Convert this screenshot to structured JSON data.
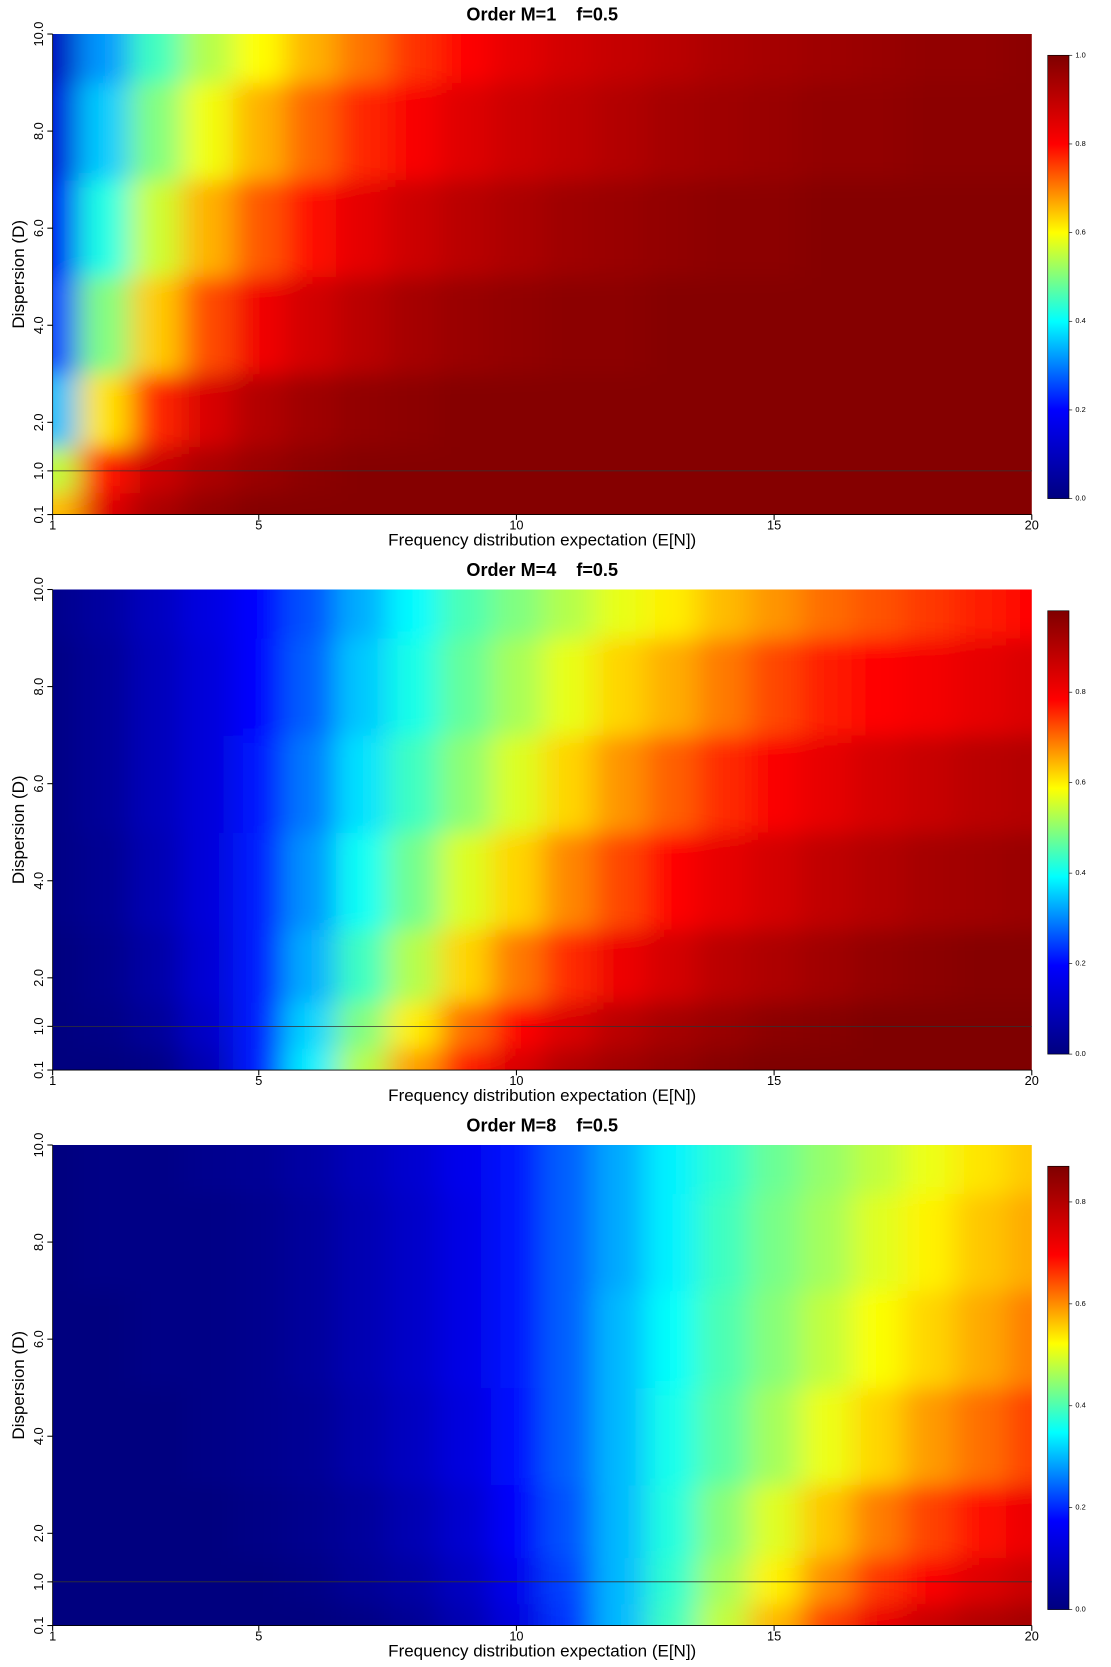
{
  "chart_data": [
    {
      "type": "heatmap",
      "title": "Order M=1    f=0.5",
      "xlabel": "Frequency distribution expectation (E[N])",
      "ylabel": "Dispersion (D)",
      "x": [
        1,
        2,
        3,
        4,
        5,
        6,
        7,
        8,
        9,
        10,
        11,
        12,
        13,
        14,
        15,
        16,
        17,
        18,
        19,
        20
      ],
      "y": [
        0.1,
        1,
        2,
        4,
        6,
        8,
        10
      ],
      "z": [
        [
          0.65,
          0.85,
          0.93,
          0.97,
          0.99,
          0.99,
          0.99,
          0.99,
          0.99,
          0.99,
          0.99,
          0.99,
          0.99,
          0.99,
          0.99,
          0.99,
          0.99,
          0.99,
          0.99,
          0.99
        ],
        [
          0.55,
          0.78,
          0.88,
          0.93,
          0.96,
          0.98,
          0.99,
          0.99,
          0.99,
          0.99,
          0.99,
          0.99,
          0.99,
          0.99,
          0.99,
          0.99,
          0.99,
          0.99,
          0.99,
          0.99
        ],
        [
          0.35,
          0.62,
          0.77,
          0.86,
          0.92,
          0.95,
          0.97,
          0.98,
          0.99,
          0.99,
          0.99,
          0.99,
          0.99,
          0.99,
          0.99,
          0.99,
          0.99,
          0.99,
          0.99,
          0.99
        ],
        [
          0.25,
          0.5,
          0.64,
          0.74,
          0.82,
          0.87,
          0.91,
          0.94,
          0.96,
          0.97,
          0.98,
          0.98,
          0.99,
          0.99,
          0.99,
          0.99,
          0.99,
          0.99,
          0.99,
          0.99
        ],
        [
          0.18,
          0.42,
          0.56,
          0.66,
          0.73,
          0.79,
          0.84,
          0.88,
          0.91,
          0.93,
          0.95,
          0.96,
          0.97,
          0.98,
          0.98,
          0.99,
          0.99,
          0.99,
          0.99,
          0.99
        ],
        [
          0.14,
          0.36,
          0.5,
          0.59,
          0.66,
          0.72,
          0.77,
          0.81,
          0.85,
          0.88,
          0.9,
          0.92,
          0.94,
          0.95,
          0.96,
          0.97,
          0.97,
          0.98,
          0.98,
          0.98
        ],
        [
          0.1,
          0.32,
          0.45,
          0.54,
          0.6,
          0.66,
          0.71,
          0.76,
          0.8,
          0.84,
          0.87,
          0.89,
          0.91,
          0.93,
          0.94,
          0.95,
          0.96,
          0.97,
          0.97,
          0.98
        ]
      ],
      "xlim": [
        1,
        20
      ],
      "ylim": [
        0.1,
        10
      ],
      "xticks": [
        1,
        5,
        10,
        15,
        20
      ],
      "yticks": [
        0.1,
        {
          "value": 1,
          "label": "1.0"
        },
        {
          "value": 2,
          "label": "2.0"
        },
        {
          "value": 4,
          "label": "4.0"
        },
        {
          "value": 6,
          "label": "6.0"
        },
        {
          "value": 8,
          "label": "8.0"
        },
        {
          "value": 10,
          "label": "10.0"
        }
      ],
      "zlim": [
        0,
        1
      ],
      "colorbar_ticks": [
        {
          "value": 0,
          "label": "0.0"
        },
        0.2,
        0.4,
        0.6,
        0.8,
        {
          "value": 1,
          "label": "1.0"
        }
      ],
      "colorscale": [
        "#00007f",
        "#0000ff",
        "#00ffff",
        "#ffff00",
        "#ff0000",
        "#7f0000"
      ],
      "hline": 1
    },
    {
      "type": "heatmap",
      "title": "Order M=4    f=0.5",
      "xlabel": "Frequency distribution expectation (E[N])",
      "ylabel": "Dispersion (D)",
      "x": [
        1,
        2,
        3,
        4,
        5,
        6,
        7,
        8,
        9,
        10,
        11,
        12,
        13,
        14,
        15,
        16,
        17,
        18,
        19,
        20
      ],
      "y": [
        0.1,
        1,
        2,
        4,
        6,
        8,
        10
      ],
      "z": [
        [
          0,
          0,
          0.01,
          0.08,
          0.22,
          0.38,
          0.53,
          0.66,
          0.76,
          0.84,
          0.9,
          0.93,
          0.95,
          0.97,
          0.98,
          0.98,
          0.98,
          0.98,
          0.98,
          0.98
        ],
        [
          0,
          0.01,
          0.04,
          0.11,
          0.22,
          0.36,
          0.49,
          0.6,
          0.7,
          0.78,
          0.84,
          0.89,
          0.92,
          0.94,
          0.96,
          0.97,
          0.98,
          0.98,
          0.98,
          0.98
        ],
        [
          0,
          0.02,
          0.06,
          0.13,
          0.22,
          0.33,
          0.44,
          0.53,
          0.62,
          0.69,
          0.75,
          0.81,
          0.85,
          0.89,
          0.91,
          0.93,
          0.95,
          0.96,
          0.97,
          0.97
        ],
        [
          0.01,
          0.03,
          0.08,
          0.14,
          0.22,
          0.31,
          0.4,
          0.48,
          0.56,
          0.62,
          0.68,
          0.73,
          0.78,
          0.82,
          0.85,
          0.88,
          0.9,
          0.92,
          0.93,
          0.94
        ],
        [
          0.01,
          0.04,
          0.09,
          0.14,
          0.21,
          0.29,
          0.37,
          0.44,
          0.5,
          0.56,
          0.62,
          0.67,
          0.71,
          0.75,
          0.79,
          0.82,
          0.85,
          0.87,
          0.89,
          0.9
        ],
        [
          0.01,
          0.04,
          0.09,
          0.14,
          0.2,
          0.27,
          0.35,
          0.41,
          0.47,
          0.52,
          0.57,
          0.62,
          0.65,
          0.69,
          0.73,
          0.76,
          0.78,
          0.8,
          0.82,
          0.84
        ],
        [
          0.02,
          0.05,
          0.1,
          0.15,
          0.2,
          0.26,
          0.33,
          0.39,
          0.45,
          0.49,
          0.53,
          0.57,
          0.6,
          0.64,
          0.67,
          0.7,
          0.72,
          0.74,
          0.76,
          0.78
        ]
      ],
      "xlim": [
        1,
        20
      ],
      "ylim": [
        0.1,
        10
      ],
      "xticks": [
        1,
        5,
        10,
        15,
        20
      ],
      "yticks": [
        0.1,
        {
          "value": 1,
          "label": "1.0"
        },
        {
          "value": 2,
          "label": "2.0"
        },
        {
          "value": 4,
          "label": "4.0"
        },
        {
          "value": 6,
          "label": "6.0"
        },
        {
          "value": 8,
          "label": "8.0"
        },
        {
          "value": 10,
          "label": "10.0"
        }
      ],
      "zlim": [
        0,
        0.98
      ],
      "colorbar_ticks": [
        {
          "value": 0,
          "label": "0.0"
        },
        0.2,
        0.4,
        0.6,
        0.8
      ],
      "colorscale": [
        "#00007f",
        "#0000ff",
        "#00ffff",
        "#ffff00",
        "#ff0000",
        "#7f0000"
      ],
      "hline": 1
    },
    {
      "type": "heatmap",
      "title": "Order M=8    f=0.5",
      "xlabel": "Frequency distribution expectation (E[N])",
      "ylabel": "Dispersion (D)",
      "x": [
        1,
        2,
        3,
        4,
        5,
        6,
        7,
        8,
        9,
        10,
        11,
        12,
        13,
        14,
        15,
        16,
        17,
        18,
        19,
        20
      ],
      "y": [
        0.1,
        1,
        2,
        4,
        6,
        8,
        10
      ],
      "z": [
        [
          0,
          0,
          0,
          0,
          0,
          0,
          0.01,
          0.03,
          0.07,
          0.13,
          0.21,
          0.3,
          0.39,
          0.48,
          0.57,
          0.65,
          0.72,
          0.77,
          0.8,
          0.82
        ],
        [
          0,
          0,
          0,
          0,
          0,
          0.01,
          0.03,
          0.05,
          0.09,
          0.15,
          0.22,
          0.3,
          0.38,
          0.46,
          0.53,
          0.6,
          0.66,
          0.7,
          0.74,
          0.77
        ],
        [
          0,
          0,
          0,
          0,
          0.01,
          0.02,
          0.04,
          0.07,
          0.11,
          0.17,
          0.23,
          0.3,
          0.37,
          0.44,
          0.5,
          0.56,
          0.61,
          0.65,
          0.69,
          0.72
        ],
        [
          0,
          0,
          0,
          0.01,
          0.02,
          0.03,
          0.06,
          0.09,
          0.13,
          0.18,
          0.24,
          0.3,
          0.36,
          0.41,
          0.46,
          0.51,
          0.55,
          0.59,
          0.62,
          0.65
        ],
        [
          0,
          0,
          0.01,
          0.01,
          0.02,
          0.04,
          0.07,
          0.1,
          0.14,
          0.19,
          0.24,
          0.3,
          0.35,
          0.4,
          0.44,
          0.48,
          0.52,
          0.55,
          0.58,
          0.61
        ],
        [
          0,
          0.01,
          0.01,
          0.01,
          0.02,
          0.04,
          0.07,
          0.1,
          0.14,
          0.19,
          0.24,
          0.29,
          0.34,
          0.39,
          0.43,
          0.46,
          0.5,
          0.53,
          0.56,
          0.58
        ],
        [
          0,
          0.01,
          0.01,
          0.02,
          0.03,
          0.05,
          0.08,
          0.11,
          0.15,
          0.19,
          0.24,
          0.29,
          0.34,
          0.38,
          0.42,
          0.45,
          0.48,
          0.51,
          0.54,
          0.56
        ]
      ],
      "xlim": [
        1,
        20
      ],
      "ylim": [
        0.1,
        10
      ],
      "xticks": [
        1,
        5,
        10,
        15,
        20
      ],
      "yticks": [
        0.1,
        {
          "value": 1,
          "label": "1.0"
        },
        {
          "value": 2,
          "label": "2.0"
        },
        {
          "value": 4,
          "label": "4.0"
        },
        {
          "value": 6,
          "label": "6.0"
        },
        {
          "value": 8,
          "label": "8.0"
        },
        {
          "value": 10,
          "label": "10.0"
        }
      ],
      "zlim": [
        0,
        0.87
      ],
      "colorbar_ticks": [
        {
          "value": 0,
          "label": "0.0"
        },
        0.2,
        0.4,
        0.6,
        0.8
      ],
      "colorscale": [
        "#00007f",
        "#0000ff",
        "#00ffff",
        "#ffff00",
        "#ff0000",
        "#7f0000"
      ],
      "hline": 1
    }
  ]
}
